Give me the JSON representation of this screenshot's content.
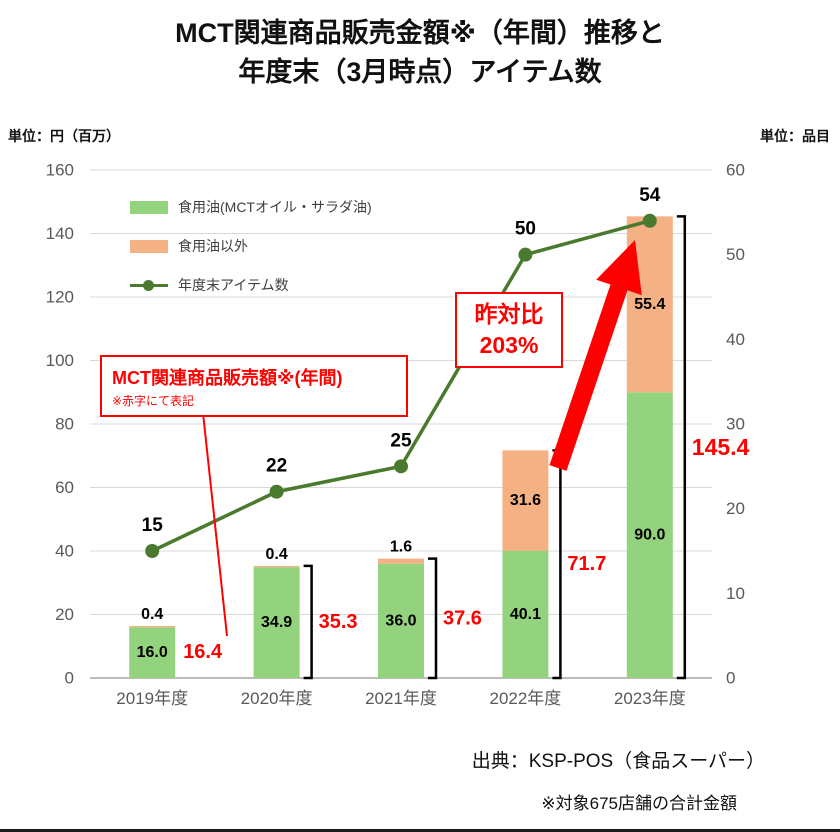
{
  "title": {
    "line1": "MCT関連商品販売金額※（年間）推移と",
    "line2": "年度末（3月時点）アイテム数"
  },
  "axes": {
    "left_unit": "単位：円（百万）",
    "right_unit": "単位：品目"
  },
  "annotations": {
    "yoy_line1": "昨対比",
    "yoy_line2": "203%",
    "sales_title": "MCT関連商品販売額※(年間)",
    "sales_sub": "※赤字にて表記"
  },
  "footer": {
    "source": "出典：KSP-POS（食品スーパー）",
    "note": "※対象675店舗の合計金額"
  },
  "colors": {
    "red_accent": "#ff0000",
    "grid": "#d9d9d9",
    "axis_text": "#595959",
    "bracket": "#000000",
    "baseline": "#a6a6a6"
  },
  "chart_data": {
    "type": "bar+line",
    "title": "MCT関連商品販売金額※（年間）推移と年度末（3月時点）アイテム数",
    "categories": [
      "2019年度",
      "2020年度",
      "2021年度",
      "2022年度",
      "2023年度"
    ],
    "series": [
      {
        "name": "食用油(MCTオイル・サラダ油)",
        "type": "bar",
        "stack": true,
        "axis": "left",
        "color": "#94d37e",
        "values": [
          16.0,
          34.9,
          36.0,
          40.1,
          90.0
        ]
      },
      {
        "name": "食用油以外",
        "type": "bar",
        "stack": true,
        "axis": "left",
        "color": "#f4b183",
        "values": [
          0.4,
          0.4,
          1.6,
          31.6,
          55.4
        ]
      },
      {
        "name": "年度末アイテム数",
        "type": "line",
        "axis": "right",
        "color": "#4a7a2e",
        "values": [
          15,
          22,
          25,
          50,
          54
        ]
      }
    ],
    "totals": [
      16.4,
      35.3,
      37.6,
      71.7,
      145.4
    ],
    "left_axis": {
      "min": 0,
      "max": 160,
      "step": 20,
      "ticks": [
        0,
        20,
        40,
        60,
        80,
        100,
        120,
        140,
        160
      ]
    },
    "right_axis": {
      "min": 0,
      "max": 60,
      "step": 10,
      "ticks": [
        0,
        10,
        20,
        30,
        40,
        50,
        60
      ]
    },
    "grid": true,
    "legend_position": "top-left-inside"
  }
}
